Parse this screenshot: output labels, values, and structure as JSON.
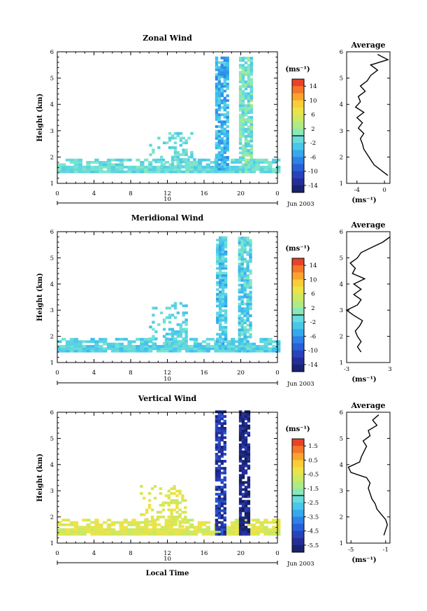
{
  "figure": {
    "date_label": "Jun 2003",
    "day_label": "10",
    "xlabel_bottom": "Local Time"
  },
  "chart_data": [
    {
      "type": "heatmap",
      "title": "Zonal Wind",
      "ylabel": "Height (km)",
      "xlabel": "",
      "xticks": [
        "0",
        "4",
        "8",
        "12",
        "16",
        "20",
        "0"
      ],
      "yticks": [
        "1",
        "2",
        "3",
        "4",
        "5",
        "6"
      ],
      "xlim": [
        0,
        24
      ],
      "ylim": [
        1,
        6
      ],
      "colorbar": {
        "unit": "(ms⁻¹)",
        "ticks": [
          "14",
          "10",
          "6",
          "2",
          "-2",
          "-6",
          "-10",
          "-14"
        ],
        "range": [
          -16,
          16
        ]
      },
      "coverage_summary": [
        {
          "x": [
            0,
            24
          ],
          "y": [
            1.4,
            1.9
          ],
          "value": -1
        },
        {
          "x": [
            10,
            15
          ],
          "y": [
            1.6,
            2.9
          ],
          "value": -1
        },
        {
          "x": [
            17.2,
            18.6
          ],
          "y": [
            1.5,
            5.8
          ],
          "value": -4
        },
        {
          "x": [
            19.8,
            21.3
          ],
          "y": [
            1.4,
            5.8
          ],
          "value": 0
        }
      ],
      "average": {
        "title": "Average",
        "xlabel": "(ms⁻¹)",
        "xticks": [
          "-4",
          "0"
        ],
        "xlim": [
          -5.5,
          0.8
        ],
        "heights": [
          1.3,
          1.5,
          1.7,
          1.9,
          2.1,
          2.3,
          2.5,
          2.7,
          2.9,
          3.1,
          3.3,
          3.5,
          3.7,
          3.9,
          4.1,
          4.3,
          4.5,
          4.7,
          4.9,
          5.1,
          5.3,
          5.5,
          5.7,
          5.9
        ],
        "values": [
          0.5,
          -0.5,
          -1.5,
          -2.0,
          -2.5,
          -3.0,
          -3.2,
          -3.5,
          -3.0,
          -3.8,
          -3.2,
          -4.0,
          -3.0,
          -4.2,
          -3.5,
          -3.8,
          -2.8,
          -3.5,
          -2.5,
          -2.0,
          -1.0,
          -2.0,
          0.5,
          -1.0
        ]
      }
    },
    {
      "type": "heatmap",
      "title": "Meridional Wind",
      "ylabel": "Height (km)",
      "xlabel": "",
      "xticks": [
        "0",
        "4",
        "8",
        "12",
        "16",
        "20",
        "0"
      ],
      "yticks": [
        "1",
        "2",
        "3",
        "4",
        "5",
        "6"
      ],
      "xlim": [
        0,
        24
      ],
      "ylim": [
        1,
        6
      ],
      "colorbar": {
        "unit": "(ms⁻¹)",
        "ticks": [
          "14",
          "10",
          "6",
          "2",
          "-2",
          "-6",
          "-10",
          "-14"
        ],
        "range": [
          -16,
          16
        ]
      },
      "coverage_summary": [
        {
          "x": [
            0,
            24
          ],
          "y": [
            1.4,
            1.9
          ],
          "value": -2
        },
        {
          "x": [
            10,
            14
          ],
          "y": [
            1.6,
            3.3
          ],
          "value": -2
        },
        {
          "x": [
            17.3,
            18.5
          ],
          "y": [
            1.5,
            5.8
          ],
          "value": -3
        },
        {
          "x": [
            19.7,
            21.2
          ],
          "y": [
            1.4,
            5.8
          ],
          "value": -2
        }
      ],
      "average": {
        "title": "Average",
        "xlabel": "(ms⁻¹)",
        "xticks": [
          "-3",
          "3"
        ],
        "xlim": [
          -3,
          3
        ],
        "heights": [
          1.4,
          1.6,
          1.8,
          2.0,
          2.2,
          2.4,
          2.6,
          2.8,
          3.0,
          3.2,
          3.4,
          3.6,
          3.8,
          4.0,
          4.2,
          4.4,
          4.6,
          4.8,
          5.0,
          5.2,
          5.4,
          5.6,
          5.8
        ],
        "values": [
          -1.0,
          -1.5,
          -1.0,
          -1.5,
          -1.8,
          -1.2,
          -0.8,
          -2.0,
          -3.0,
          -1.5,
          -1.0,
          -2.0,
          -1.0,
          -2.0,
          -0.5,
          -2.2,
          -1.8,
          -2.5,
          -1.5,
          -1.0,
          0.5,
          2.0,
          3.0
        ]
      }
    },
    {
      "type": "heatmap",
      "title": "Vertical Wind",
      "ylabel": "Height (km)",
      "xlabel": "Local Time",
      "xticks": [
        "0",
        "4",
        "8",
        "12",
        "16",
        "20",
        "0"
      ],
      "yticks": [
        "1",
        "2",
        "3",
        "4",
        "5",
        "6"
      ],
      "xlim": [
        0,
        24
      ],
      "ylim": [
        1,
        6
      ],
      "colorbar": {
        "unit": "(ms⁻¹)",
        "ticks": [
          "1.5",
          "0.5",
          "-0.5",
          "-1.5",
          "-2.5",
          "-3.5",
          "-4.5",
          "-5.5"
        ],
        "range": [
          -6,
          2
        ]
      },
      "coverage_summary": [
        {
          "x": [
            0,
            24
          ],
          "y": [
            1.3,
            1.9
          ],
          "value": -0.5
        },
        {
          "x": [
            9,
            14
          ],
          "y": [
            1.6,
            3.2
          ],
          "value": -0.5
        },
        {
          "x": [
            17.2,
            18.4
          ],
          "y": [
            1.3,
            6.0
          ],
          "value": -5.0
        },
        {
          "x": [
            19.8,
            21.0
          ],
          "y": [
            1.3,
            6.0
          ],
          "value": -5.5
        }
      ],
      "average": {
        "title": "Average",
        "xlabel": "(ms⁻¹)",
        "xticks": [
          "-5",
          "-1"
        ],
        "xlim": [
          -5.5,
          -0.5
        ],
        "heights": [
          1.3,
          1.5,
          1.7,
          1.9,
          2.1,
          2.3,
          2.5,
          2.7,
          2.9,
          3.1,
          3.3,
          3.5,
          3.7,
          3.9,
          4.1,
          4.3,
          4.5,
          4.7,
          4.9,
          5.1,
          5.3,
          5.5,
          5.7,
          5.9
        ],
        "values": [
          -1.2,
          -1.0,
          -0.8,
          -1.0,
          -1.5,
          -2.0,
          -2.2,
          -2.6,
          -2.8,
          -3.0,
          -2.8,
          -3.2,
          -5.0,
          -5.3,
          -4.0,
          -3.8,
          -3.5,
          -3.2,
          -3.6,
          -2.8,
          -3.0,
          -2.0,
          -2.5,
          -1.8
        ]
      }
    }
  ]
}
